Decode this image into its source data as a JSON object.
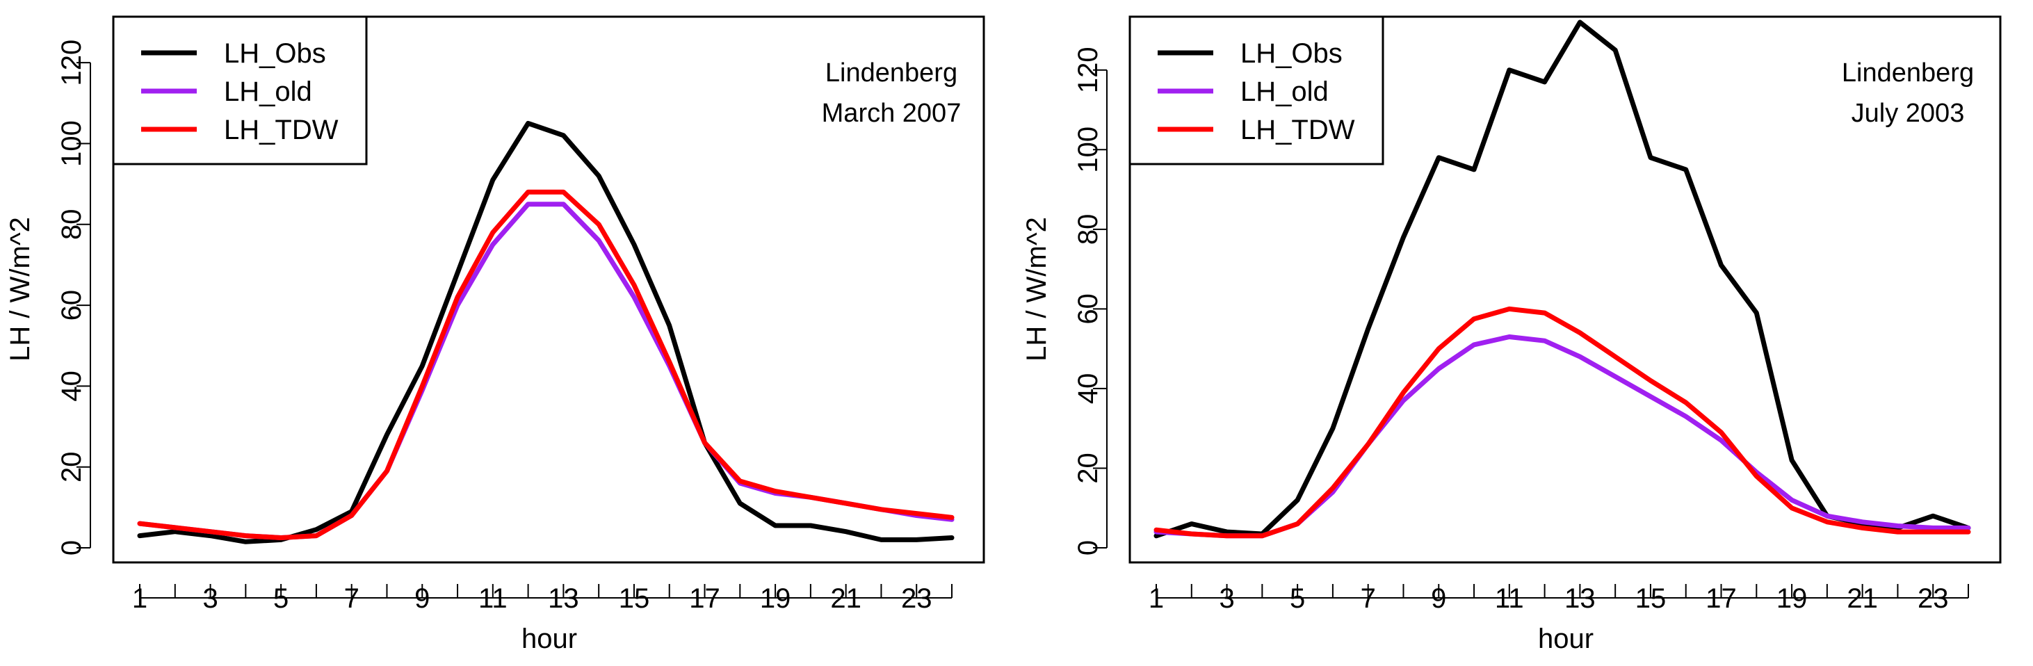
{
  "chart_data": [
    {
      "type": "line",
      "annotation": [
        "Lindenberg",
        "March 2007"
      ],
      "xlabel": "hour",
      "ylabel": "LH / W/m^2",
      "xlim": [
        1,
        24
      ],
      "ylim": [
        0,
        130
      ],
      "xticks": [
        1,
        3,
        5,
        7,
        9,
        11,
        13,
        15,
        17,
        19,
        21,
        23
      ],
      "yticks": [
        0,
        20,
        40,
        60,
        80,
        100,
        120
      ],
      "legend_position": "top-left",
      "x": [
        1,
        2,
        3,
        4,
        5,
        6,
        7,
        8,
        9,
        10,
        11,
        12,
        13,
        14,
        15,
        16,
        17,
        18,
        19,
        20,
        21,
        22,
        23,
        24
      ],
      "series": [
        {
          "name": "LH_Obs",
          "color": "#000000",
          "values": [
            3.0,
            4.0,
            3.0,
            1.5,
            2.0,
            4.5,
            9.0,
            28.0,
            45.0,
            68.0,
            91.0,
            105.0,
            102.0,
            92.0,
            75.0,
            55.0,
            26.0,
            11.0,
            5.5,
            5.5,
            4.0,
            2.0,
            2.0,
            2.5
          ]
        },
        {
          "name": "LH_old",
          "color": "#a020f0",
          "values": [
            6.0,
            5.0,
            4.0,
            3.0,
            2.5,
            3.0,
            8.0,
            19.0,
            39.0,
            60.0,
            75.0,
            85.0,
            85.0,
            76.0,
            62.0,
            45.0,
            26.0,
            16.0,
            13.5,
            12.5,
            11.0,
            9.5,
            8.0,
            7.0
          ]
        },
        {
          "name": "LH_TDW",
          "color": "#ff0000",
          "values": [
            6.0,
            5.0,
            4.0,
            3.0,
            2.5,
            3.0,
            8.0,
            19.0,
            40.0,
            62.0,
            78.0,
            88.0,
            88.0,
            80.0,
            65.0,
            46.0,
            26.0,
            16.5,
            14.0,
            12.5,
            11.0,
            9.5,
            8.5,
            7.5
          ]
        }
      ]
    },
    {
      "type": "line",
      "annotation": [
        "Lindenberg",
        "July 2003"
      ],
      "xlabel": "hour",
      "ylabel": "LH / W/m^2",
      "xlim": [
        1,
        24
      ],
      "ylim": [
        0,
        132
      ],
      "xticks": [
        1,
        3,
        5,
        7,
        9,
        11,
        13,
        15,
        17,
        19,
        21,
        23
      ],
      "yticks": [
        0,
        20,
        40,
        60,
        80,
        100,
        120
      ],
      "legend_position": "top-left",
      "x": [
        1,
        2,
        3,
        4,
        5,
        6,
        7,
        8,
        9,
        10,
        11,
        12,
        13,
        14,
        15,
        16,
        17,
        18,
        19,
        20,
        21,
        22,
        23,
        24
      ],
      "series": [
        {
          "name": "LH_Obs",
          "color": "#000000",
          "values": [
            3.0,
            6.0,
            4.0,
            3.5,
            12.0,
            30.0,
            55.0,
            78.0,
            98.0,
            95.0,
            120.0,
            117.0,
            132.0,
            125.0,
            98.0,
            95.0,
            71.0,
            59.0,
            22.0,
            8.0,
            6.0,
            5.0,
            8.0,
            5.0
          ]
        },
        {
          "name": "LH_old",
          "color": "#a020f0",
          "values": [
            4.0,
            3.5,
            3.0,
            3.0,
            6.0,
            14.0,
            26.0,
            37.0,
            45.0,
            51.0,
            53.0,
            52.0,
            48.0,
            43.0,
            38.0,
            33.0,
            27.0,
            19.0,
            12.0,
            8.0,
            6.5,
            5.5,
            5.0,
            5.0
          ]
        },
        {
          "name": "LH_TDW",
          "color": "#ff0000",
          "values": [
            4.5,
            3.5,
            3.0,
            3.0,
            6.0,
            15.0,
            26.0,
            39.0,
            50.0,
            57.5,
            60.0,
            59.0,
            54.0,
            48.0,
            42.0,
            36.5,
            29.0,
            18.0,
            10.0,
            6.5,
            5.0,
            4.0,
            4.0,
            4.0
          ]
        }
      ]
    }
  ]
}
